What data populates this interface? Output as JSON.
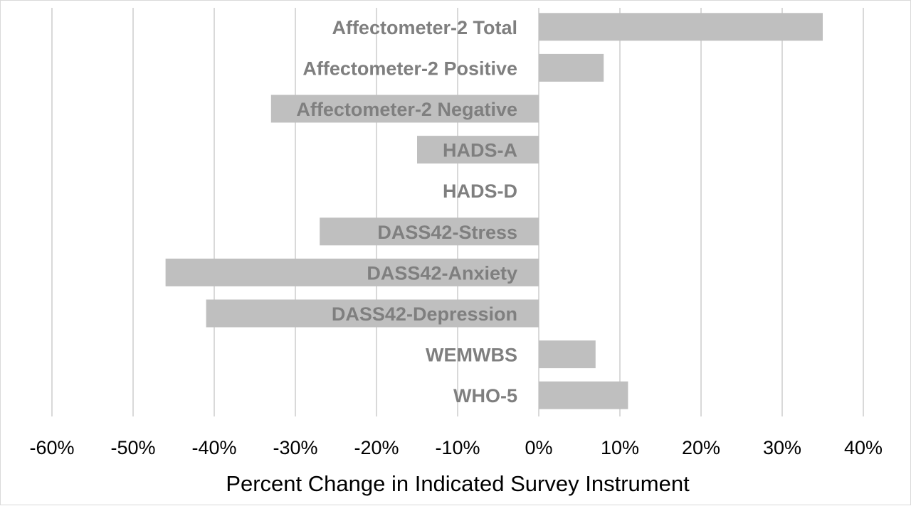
{
  "chart_data": {
    "type": "bar",
    "orientation": "horizontal",
    "categories": [
      "Affectometer-2 Total",
      "Affectometer-2 Positive",
      "Affectometer-2 Negative",
      "HADS-A",
      "HADS-D",
      "DASS42-Stress",
      "DASS42-Anxiety",
      "DASS42-Depression",
      "WEMWBS",
      "WHO-5"
    ],
    "values": [
      35,
      8,
      -33,
      -15,
      0,
      -27,
      -46,
      -41,
      7,
      11
    ],
    "xlabel": "Percent Change in Indicated Survey Instrument",
    "ylabel": "",
    "xlim": [
      -60,
      40
    ],
    "x_ticks": [
      -60,
      -50,
      -40,
      -30,
      -20,
      -10,
      0,
      10,
      20,
      30,
      40
    ],
    "x_tick_labels": [
      "-60%",
      "-50%",
      "-40%",
      "-30%",
      "-20%",
      "-10%",
      "0%",
      "10%",
      "20%",
      "30%",
      "40%"
    ],
    "grid": "vertical",
    "legend": "none",
    "bar_color": "#bfbfbf",
    "label_color": "#7f7f7f",
    "grid_color": "#d9d9d9"
  }
}
